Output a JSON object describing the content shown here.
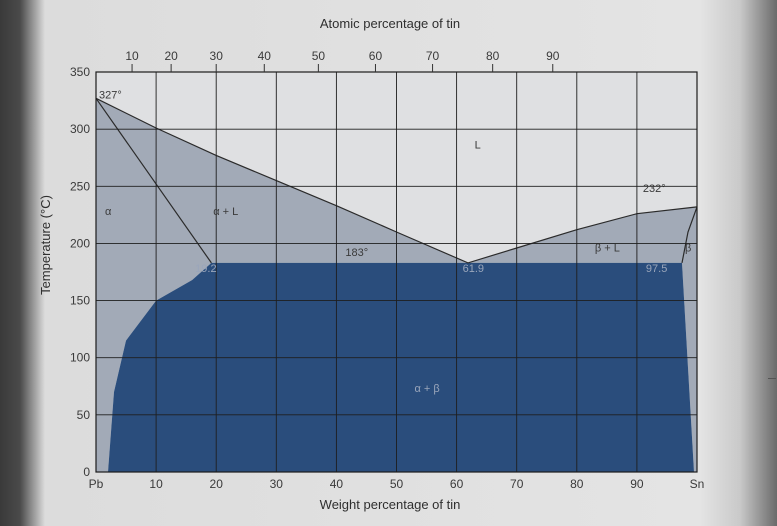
{
  "chart_data": {
    "type": "area",
    "title": "",
    "xlabel": "Weight percentage of tin",
    "x2label": "Atomic percentage of tin",
    "ylabel": "Temperature (°C)",
    "xlim": [
      0,
      100
    ],
    "ylim": [
      0,
      350
    ],
    "grid": true,
    "x_ticks": [
      "Pb",
      "10",
      "20",
      "30",
      "40",
      "50",
      "60",
      "70",
      "80",
      "90",
      "Sn"
    ],
    "x_tick_values": [
      0,
      10,
      20,
      30,
      40,
      50,
      60,
      70,
      80,
      90,
      100
    ],
    "x2_ticks": [
      "10",
      "20",
      "30",
      "40",
      "50",
      "60",
      "70",
      "80",
      "90"
    ],
    "x2_tick_weight_positions": [
      6.0,
      12.5,
      20.0,
      28.0,
      37.0,
      46.5,
      56.0,
      66.0,
      76.0
    ],
    "y_ticks": [
      "0",
      "50",
      "100",
      "150",
      "200",
      "250",
      "300",
      "350"
    ],
    "y_tick_values": [
      0,
      50,
      100,
      150,
      200,
      250,
      300,
      350
    ],
    "liquidus": {
      "x": [
        0,
        10,
        20,
        30,
        40,
        50,
        61.9,
        70,
        80,
        90,
        100
      ],
      "y": [
        327,
        301,
        277,
        255,
        233,
        210,
        183,
        196,
        212,
        226,
        232
      ]
    },
    "solidus_alpha": {
      "x": [
        0,
        19.2
      ],
      "y": [
        327,
        183
      ]
    },
    "solidus_beta": {
      "x": [
        97.5,
        98.5,
        100
      ],
      "y": [
        183,
        210,
        232
      ]
    },
    "solvus_alpha": {
      "x": [
        19.2,
        16,
        10,
        5,
        3,
        2
      ],
      "y": [
        183,
        168,
        150,
        115,
        70,
        0
      ]
    },
    "solvus_beta": {
      "x": [
        97.5,
        99.5
      ],
      "y": [
        183,
        0
      ]
    },
    "colors": {
      "liquid": "#dfe0e2",
      "alpha_L": "#a2aab7",
      "alpha_beta": "#2a4d7c",
      "grid": "#1e1e1e"
    },
    "annotations": [
      {
        "text": "327°",
        "x": 0.5,
        "y": 327
      },
      {
        "text": "232°",
        "x": 91,
        "y": 245
      },
      {
        "text": "183°",
        "x": 41.5,
        "y": 189
      },
      {
        "text": "19.2",
        "x": 16.5,
        "y": 175
      },
      {
        "text": "61.9",
        "x": 61,
        "y": 175
      },
      {
        "text": "97.5",
        "x": 91.5,
        "y": 175
      },
      {
        "text": "L",
        "x": 63,
        "y": 283
      },
      {
        "text": "α",
        "x": 1.5,
        "y": 225
      },
      {
        "text": "α + L",
        "x": 19.5,
        "y": 225
      },
      {
        "text": "β + L",
        "x": 83,
        "y": 193
      },
      {
        "text": "β",
        "x": 98,
        "y": 193
      },
      {
        "text": "α + β",
        "x": 53,
        "y": 70
      }
    ]
  }
}
